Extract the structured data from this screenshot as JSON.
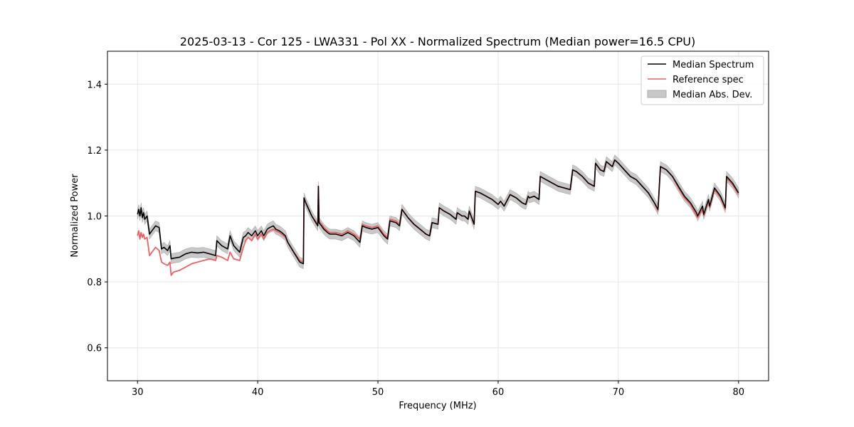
{
  "chart_data": {
    "type": "line",
    "title": "2025-03-13 - Cor 125 - LWA331 - Pol XX - Normalized Spectrum (Median power=16.5 CPU)",
    "xlabel": "Frequency (MHz)",
    "ylabel": "Normalized Power",
    "xlim": [
      27.5,
      82.5
    ],
    "ylim": [
      0.5,
      1.5
    ],
    "xticks": [
      30,
      40,
      50,
      60,
      70,
      80
    ],
    "xtick_labels": [
      "30",
      "40",
      "50",
      "60",
      "70",
      "80"
    ],
    "yticks": [
      0.6,
      0.8,
      1.0,
      1.2,
      1.4
    ],
    "ytick_labels": [
      "0.6",
      "0.8",
      "1.0",
      "1.2",
      "1.4"
    ],
    "grid": true,
    "legend_position": "top-right",
    "legend": [
      "Median Spectrum",
      "Reference spec",
      "Median Abs. Dev."
    ],
    "colors": {
      "median": "#000000",
      "reference": "#f06060",
      "mad_fill": "#c8c8c8",
      "mad_edge": "#aaaaaa",
      "grid": "#e6e6e6",
      "frame": "#000000"
    },
    "series": [
      {
        "name": "Median Spectrum",
        "x": [
          30.0,
          30.1,
          30.2,
          30.3,
          30.4,
          30.5,
          30.6,
          30.8,
          31.0,
          31.2,
          31.5,
          31.8,
          32.0,
          32.2,
          32.5,
          32.7,
          32.8,
          33.0,
          33.5,
          34.0,
          34.5,
          35.0,
          35.5,
          36.0,
          36.5,
          36.6,
          37.0,
          37.5,
          37.7,
          38.0,
          38.5,
          38.8,
          39.0,
          39.2,
          39.5,
          39.8,
          40.0,
          40.3,
          40.5,
          40.8,
          41.0,
          41.3,
          41.5,
          41.8,
          42.0,
          42.3,
          42.5,
          43.0,
          43.5,
          43.8,
          43.85,
          44.0,
          44.5,
          45.0,
          45.05,
          45.1,
          45.3,
          45.5,
          45.8,
          46.0,
          46.5,
          47.0,
          47.5,
          48.0,
          48.5,
          48.7,
          49.0,
          49.5,
          50.0,
          50.5,
          50.8,
          51.0,
          51.5,
          51.8,
          52.0,
          52.5,
          53.0,
          53.5,
          54.0,
          54.3,
          54.5,
          55.0,
          55.1,
          55.5,
          56.0,
          56.5,
          56.6,
          57.0,
          57.2,
          57.5,
          57.6,
          58.0,
          58.1,
          58.5,
          59.0,
          59.5,
          60.0,
          60.2,
          60.5,
          61.0,
          61.5,
          62.0,
          62.3,
          62.5,
          62.6,
          63.0,
          63.4,
          63.5,
          64.0,
          64.5,
          65.0,
          65.5,
          66.0,
          66.2,
          66.5,
          67.0,
          67.5,
          68.0,
          68.1,
          68.5,
          68.8,
          69.0,
          69.5,
          69.7,
          70.0,
          70.5,
          71.0,
          71.5,
          72.0,
          72.5,
          73.0,
          73.3,
          73.5,
          74.0,
          74.5,
          75.0,
          75.5,
          76.0,
          76.5,
          76.6,
          77.0,
          77.1,
          77.5,
          77.6,
          78.0,
          78.5,
          78.9,
          79.0,
          79.5,
          80.0
        ],
        "values": [
          1.005,
          1.02,
          1.0,
          1.025,
          0.995,
          1.01,
          0.99,
          1.0,
          0.945,
          0.955,
          0.97,
          0.965,
          0.9,
          0.905,
          0.895,
          0.91,
          0.87,
          0.872,
          0.875,
          0.885,
          0.89,
          0.888,
          0.89,
          0.885,
          0.88,
          0.925,
          0.91,
          0.9,
          0.94,
          0.91,
          0.89,
          0.935,
          0.94,
          0.95,
          0.94,
          0.955,
          0.94,
          0.955,
          0.94,
          0.96,
          0.965,
          0.97,
          0.96,
          0.955,
          0.95,
          0.94,
          0.92,
          0.89,
          0.86,
          0.855,
          1.055,
          1.04,
          1.0,
          0.97,
          1.09,
          0.98,
          0.97,
          0.96,
          0.95,
          0.945,
          0.945,
          0.94,
          0.95,
          0.94,
          0.92,
          0.97,
          0.965,
          0.96,
          0.965,
          0.94,
          0.93,
          0.985,
          0.98,
          0.97,
          1.02,
          0.995,
          0.975,
          0.96,
          0.945,
          0.94,
          0.98,
          0.975,
          1.025,
          1.015,
          1.005,
          0.99,
          1.01,
          1.0,
          1.0,
          0.99,
          1.015,
          0.975,
          1.075,
          1.07,
          1.06,
          1.05,
          1.035,
          1.045,
          1.03,
          1.065,
          1.055,
          1.04,
          1.035,
          1.06,
          1.055,
          1.06,
          1.05,
          1.12,
          1.11,
          1.1,
          1.09,
          1.085,
          1.08,
          1.14,
          1.135,
          1.12,
          1.1,
          1.09,
          1.16,
          1.14,
          1.135,
          1.165,
          1.15,
          1.17,
          1.16,
          1.14,
          1.12,
          1.11,
          1.09,
          1.07,
          1.04,
          1.02,
          1.15,
          1.14,
          1.12,
          1.09,
          1.06,
          1.04,
          1.01,
          1.0,
          1.03,
          1.005,
          1.05,
          1.03,
          1.085,
          1.06,
          1.025,
          1.12,
          1.1,
          1.07
        ]
      },
      {
        "name": "Reference spec",
        "x": [
          30.0,
          30.1,
          30.2,
          30.3,
          30.4,
          30.5,
          30.6,
          30.8,
          31.0,
          31.2,
          31.5,
          31.8,
          32.0,
          32.2,
          32.5,
          32.7,
          32.8,
          33.0,
          33.5,
          34.0,
          34.5,
          35.0,
          35.5,
          36.0,
          36.5,
          36.6,
          37.0,
          37.5,
          37.7,
          38.0,
          38.5,
          38.8,
          39.0,
          39.2,
          39.5,
          39.8,
          40.0,
          40.3,
          40.5,
          40.8,
          41.0,
          41.3,
          41.5,
          41.8,
          42.0,
          42.3,
          42.5,
          43.0,
          43.5,
          43.8,
          43.85,
          44.0,
          44.5,
          45.0,
          45.05,
          45.1,
          45.3,
          45.5,
          45.8,
          46.0,
          46.5,
          47.0,
          47.5,
          48.0,
          48.5,
          48.7,
          49.0,
          49.5,
          50.0,
          50.5,
          50.8,
          51.0,
          51.5,
          51.8,
          52.0,
          52.5,
          53.0,
          53.5,
          54.0,
          54.3,
          54.5,
          55.0,
          55.1,
          55.5,
          56.0,
          56.5,
          56.6,
          57.0,
          57.2,
          57.5,
          57.6,
          58.0,
          58.1,
          58.5,
          59.0,
          59.5,
          60.0,
          60.2,
          60.5,
          61.0,
          61.5,
          62.0,
          62.3,
          62.5,
          62.6,
          63.0,
          63.4,
          63.5,
          64.0,
          64.5,
          65.0,
          65.5,
          66.0,
          66.2,
          66.5,
          67.0,
          67.5,
          68.0,
          68.1,
          68.5,
          68.8,
          69.0,
          69.5,
          69.7,
          70.0,
          70.5,
          71.0,
          71.5,
          72.0,
          72.5,
          73.0,
          73.3,
          73.5,
          74.0,
          74.5,
          75.0,
          75.5,
          76.0,
          76.5,
          76.6,
          77.0,
          77.1,
          77.5,
          77.6,
          78.0,
          78.5,
          78.9,
          79.0,
          79.5,
          80.0
        ],
        "values": [
          0.94,
          0.955,
          0.93,
          0.95,
          0.935,
          0.945,
          0.93,
          0.935,
          0.88,
          0.89,
          0.905,
          0.895,
          0.86,
          0.855,
          0.85,
          0.86,
          0.82,
          0.83,
          0.835,
          0.845,
          0.855,
          0.86,
          0.865,
          0.87,
          0.865,
          0.88,
          0.875,
          0.865,
          0.89,
          0.87,
          0.865,
          0.905,
          0.925,
          0.935,
          0.925,
          0.945,
          0.93,
          0.945,
          0.93,
          0.95,
          0.955,
          0.96,
          0.955,
          0.95,
          0.945,
          0.935,
          0.92,
          0.89,
          0.865,
          0.86,
          1.055,
          1.04,
          1.0,
          0.975,
          1.09,
          0.985,
          0.975,
          0.965,
          0.955,
          0.95,
          0.95,
          0.945,
          0.955,
          0.945,
          0.93,
          0.975,
          0.97,
          0.965,
          0.97,
          0.945,
          0.935,
          0.99,
          0.985,
          0.975,
          1.02,
          0.995,
          0.975,
          0.96,
          0.945,
          0.94,
          0.98,
          0.975,
          1.025,
          1.015,
          1.005,
          0.99,
          1.01,
          1.0,
          1.0,
          0.99,
          1.015,
          0.975,
          1.075,
          1.07,
          1.06,
          1.05,
          1.035,
          1.045,
          1.03,
          1.065,
          1.055,
          1.04,
          1.035,
          1.06,
          1.055,
          1.06,
          1.05,
          1.12,
          1.11,
          1.1,
          1.09,
          1.085,
          1.08,
          1.14,
          1.135,
          1.12,
          1.1,
          1.09,
          1.16,
          1.14,
          1.135,
          1.165,
          1.15,
          1.17,
          1.16,
          1.14,
          1.12,
          1.11,
          1.09,
          1.07,
          1.04,
          1.015,
          1.15,
          1.14,
          1.12,
          1.085,
          1.055,
          1.035,
          1.0,
          0.995,
          1.02,
          1.0,
          1.045,
          1.025,
          1.08,
          1.055,
          1.02,
          1.115,
          1.095,
          1.065
        ]
      }
    ],
    "mad_band_halfwidth": 0.015
  }
}
